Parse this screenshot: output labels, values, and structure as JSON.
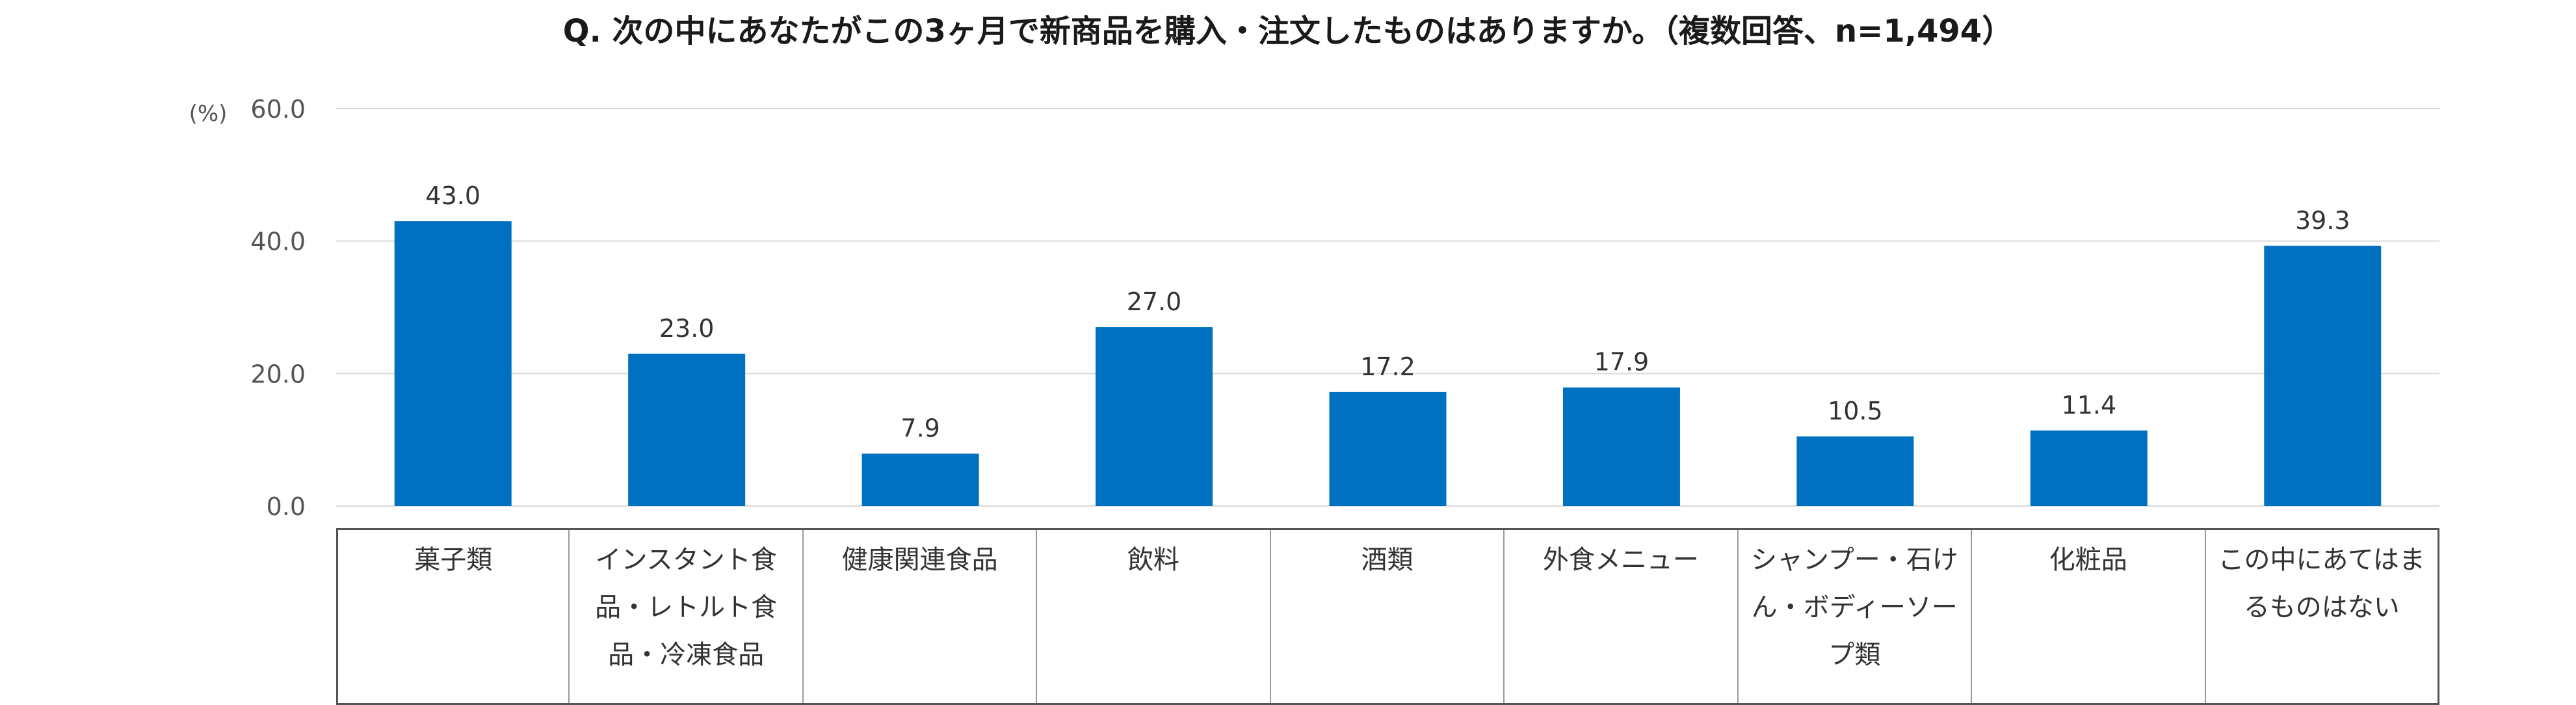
{
  "chart_data": {
    "type": "bar",
    "title": "Q. 次の中にあなたがこの3ヶ月で新商品を購入・注文したものはありますか。（複数回答、n=1,494）",
    "unit_label": "(%)",
    "categories": [
      "菓子類",
      "インスタント食品・レトルト食品・冷凍食品",
      "健康関連食品",
      "飲料",
      "酒類",
      "外食メニュー",
      "シャンプー・石けん・ボディーソープ類",
      "化粧品",
      "この中にあてはまるものはない"
    ],
    "values": [
      43.0,
      23.0,
      7.9,
      27.0,
      17.2,
      17.9,
      10.5,
      11.4,
      39.3
    ],
    "value_labels": [
      "43.0",
      "23.0",
      "7.9",
      "27.0",
      "17.2",
      "17.9",
      "10.5",
      "11.4",
      "39.3"
    ],
    "ylim": [
      0,
      60
    ],
    "yticks": [
      0,
      20,
      40,
      60
    ],
    "ytick_labels": [
      "0.0",
      "20.0",
      "40.0",
      "60.0"
    ],
    "bar_color": "#0070c0",
    "grid": true,
    "legend": "none"
  }
}
